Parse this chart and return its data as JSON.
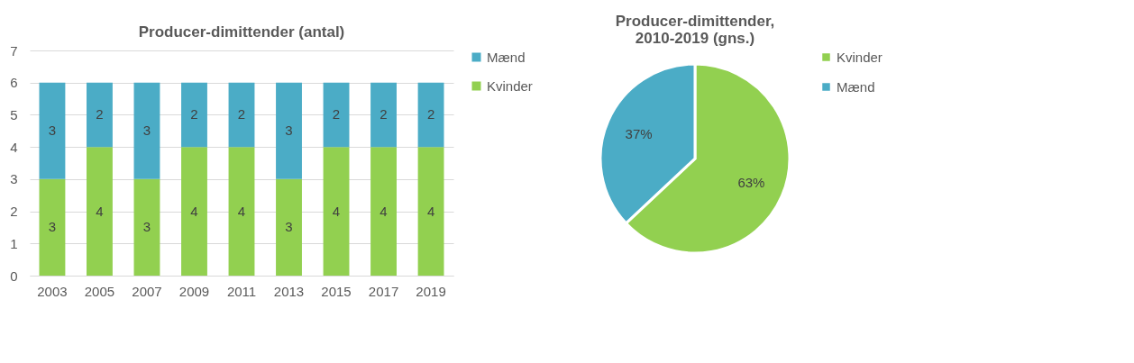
{
  "chart_data": [
    {
      "type": "bar",
      "title": "Producer-dimittender (antal)",
      "categories": [
        "2003",
        "2005",
        "2007",
        "2009",
        "2011",
        "2013",
        "2015",
        "2017",
        "2019"
      ],
      "series": [
        {
          "name": "Kvinder",
          "color": "#92d050",
          "values": [
            3,
            4,
            3,
            4,
            4,
            3,
            4,
            4,
            4
          ]
        },
        {
          "name": "Mænd",
          "color": "#4bacc6",
          "values": [
            3,
            2,
            3,
            2,
            2,
            3,
            2,
            2,
            2
          ]
        }
      ],
      "stacked": true,
      "ylim": [
        0,
        7
      ],
      "yticks": [
        0,
        1,
        2,
        3,
        4,
        5,
        6,
        7
      ],
      "grid": "y",
      "legend": "right",
      "data_labels": true
    },
    {
      "type": "pie",
      "title": "Producer-dimittender,\n2010-2019 (gns.)",
      "categories": [
        "Kvinder",
        "Mænd"
      ],
      "values": [
        63,
        37
      ],
      "colors": [
        "#92d050",
        "#4bacc6"
      ],
      "value_labels": [
        "63%",
        "37%"
      ],
      "legend": "right"
    }
  ]
}
